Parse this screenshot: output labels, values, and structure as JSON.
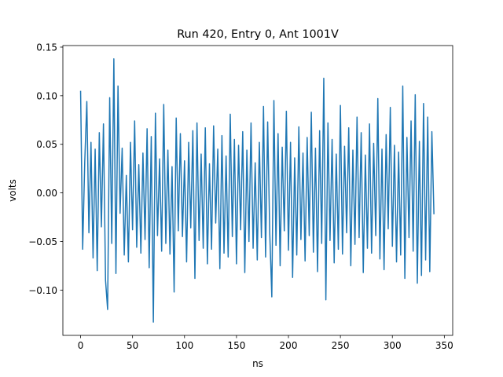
{
  "chart_data": {
    "type": "line",
    "title": "Run 420, Entry 0, Ant 1001V",
    "x_label": "ns",
    "y_label": "volts",
    "xlim": [
      -17.05,
      358.05
    ],
    "ylim": [
      -0.1466,
      0.1516
    ],
    "xticks": [
      0,
      50,
      100,
      150,
      200,
      250,
      300,
      350
    ],
    "yticks": [
      {
        "value": -0.1,
        "label": "−0.10"
      },
      {
        "value": -0.05,
        "label": "−0.05"
      },
      {
        "value": 0,
        "label": "0.00"
      },
      {
        "value": 0.05,
        "label": "0.05"
      },
      {
        "value": 0.1,
        "label": "0.10"
      },
      {
        "value": 0.15,
        "label": "0.15"
      }
    ],
    "grid": false,
    "x": [
      0,
      2,
      4,
      6,
      8,
      10,
      12,
      14,
      16,
      18,
      20,
      22,
      24,
      26,
      28,
      30,
      32,
      34,
      36,
      38,
      40,
      42,
      44,
      46,
      48,
      50,
      52,
      54,
      56,
      58,
      60,
      62,
      64,
      66,
      68,
      70,
      72,
      74,
      76,
      78,
      80,
      82,
      84,
      86,
      88,
      90,
      92,
      94,
      96,
      98,
      100,
      102,
      104,
      106,
      108,
      110,
      112,
      114,
      116,
      118,
      120,
      122,
      124,
      126,
      128,
      130,
      132,
      134,
      136,
      138,
      140,
      142,
      144,
      146,
      148,
      150,
      152,
      154,
      156,
      158,
      160,
      162,
      164,
      166,
      168,
      170,
      172,
      174,
      176,
      178,
      180,
      182,
      184,
      186,
      188,
      190,
      192,
      194,
      196,
      198,
      200,
      202,
      204,
      206,
      208,
      210,
      212,
      214,
      216,
      218,
      220,
      222,
      224,
      226,
      228,
      230,
      232,
      234,
      236,
      238,
      240,
      242,
      244,
      246,
      248,
      250,
      252,
      254,
      256,
      258,
      260,
      262,
      264,
      266,
      268,
      270,
      272,
      274,
      276,
      278,
      280,
      282,
      284,
      286,
      288,
      290,
      292,
      294,
      296,
      298,
      300,
      302,
      304,
      306,
      308,
      310,
      312,
      314,
      316,
      318,
      320,
      322,
      324,
      326,
      328,
      330,
      332,
      334,
      336,
      338,
      340
    ],
    "series": [
      {
        "color": "#1f77b4",
        "values": [
          0.105,
          -0.058,
          0.032,
          0.094,
          -0.041,
          0.052,
          -0.067,
          0.045,
          -0.08,
          0.062,
          -0.035,
          0.071,
          -0.09,
          -0.12,
          0.098,
          -0.052,
          0.138,
          -0.083,
          0.11,
          -0.021,
          0.046,
          -0.064,
          0.018,
          -0.071,
          0.052,
          -0.038,
          0.074,
          -0.056,
          0.029,
          -0.062,
          0.041,
          -0.048,
          0.066,
          -0.077,
          0.058,
          -0.133,
          0.082,
          -0.044,
          0.035,
          -0.06,
          0.091,
          -0.052,
          0.044,
          -0.063,
          0.027,
          -0.102,
          0.077,
          -0.039,
          0.061,
          -0.045,
          0.033,
          -0.071,
          0.052,
          -0.036,
          0.064,
          -0.088,
          0.072,
          -0.049,
          0.04,
          -0.057,
          0.067,
          -0.073,
          0.03,
          -0.058,
          0.069,
          -0.031,
          0.045,
          -0.078,
          0.059,
          -0.062,
          0.038,
          -0.066,
          0.081,
          -0.045,
          0.055,
          -0.073,
          0.049,
          -0.038,
          0.063,
          -0.082,
          0.044,
          -0.05,
          0.072,
          -0.057,
          0.031,
          -0.069,
          0.052,
          -0.046,
          0.089,
          -0.066,
          0.073,
          -0.041,
          -0.107,
          0.095,
          -0.054,
          0.061,
          -0.075,
          0.047,
          -0.039,
          0.084,
          -0.059,
          0.052,
          -0.087,
          0.036,
          -0.064,
          0.068,
          -0.048,
          0.041,
          -0.07,
          0.057,
          -0.044,
          0.083,
          -0.061,
          0.046,
          -0.081,
          0.064,
          -0.052,
          0.118,
          -0.11,
          0.072,
          -0.049,
          0.055,
          -0.072,
          0.04,
          -0.058,
          0.09,
          -0.063,
          0.048,
          -0.041,
          0.067,
          -0.075,
          0.044,
          -0.053,
          0.078,
          -0.046,
          0.062,
          -0.082,
          0.039,
          -0.057,
          0.071,
          -0.062,
          0.051,
          -0.044,
          0.097,
          -0.068,
          0.045,
          -0.079,
          0.06,
          -0.037,
          0.088,
          -0.055,
          0.049,
          -0.071,
          0.042,
          -0.064,
          0.11,
          -0.088,
          0.057,
          -0.046,
          0.074,
          -0.06,
          0.101,
          -0.093,
          0.053,
          -0.085,
          0.092,
          -0.069,
          0.078,
          -0.081,
          0.063,
          -0.022
        ]
      }
    ]
  }
}
